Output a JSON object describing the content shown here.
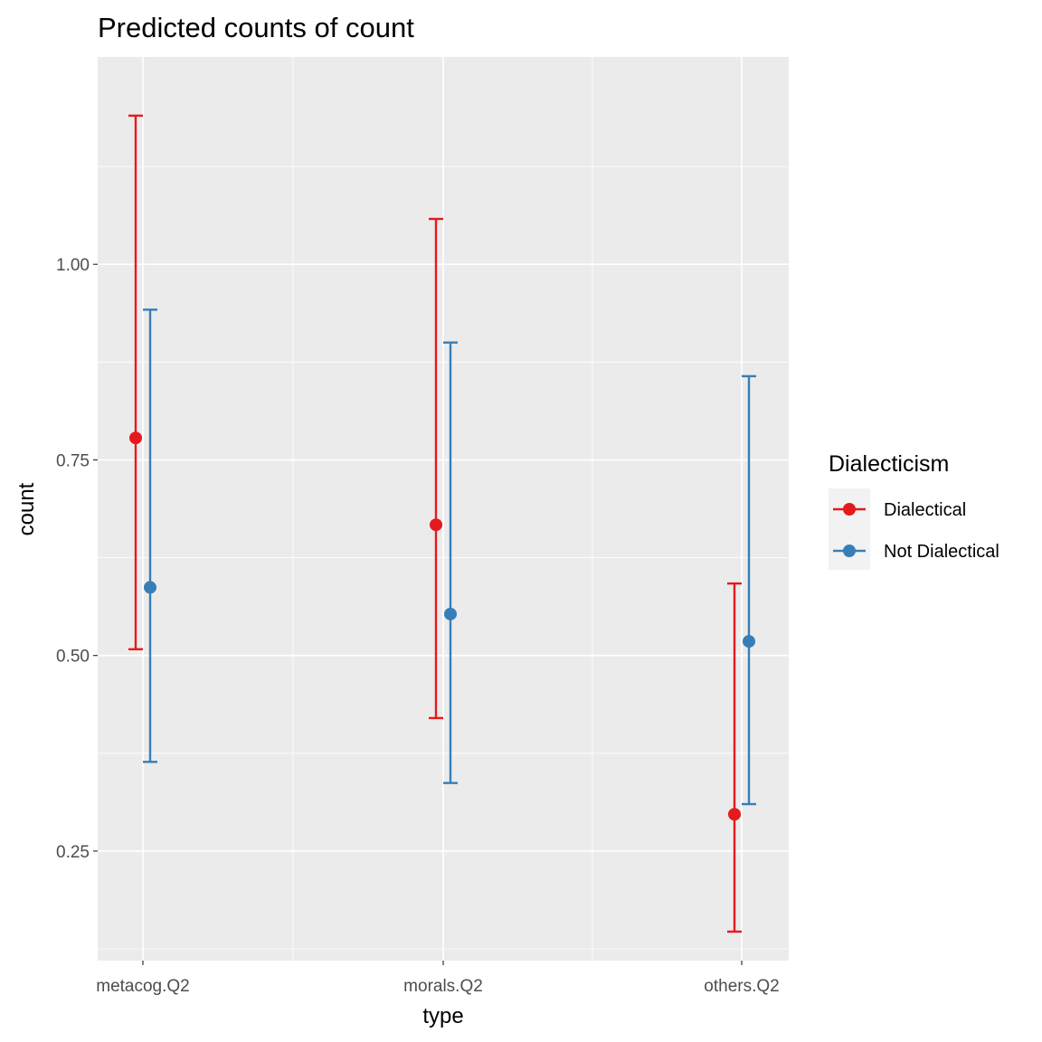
{
  "chart_data": {
    "type": "scatter",
    "title": "Predicted counts of count",
    "xlabel": "type",
    "ylabel": "count",
    "categories": [
      "metacog.Q2",
      "morals.Q2",
      "others.Q2"
    ],
    "ylim": [
      0.11,
      1.265
    ],
    "yticks": [
      0.25,
      0.5,
      0.75,
      1.0
    ],
    "ytick_labels": [
      "0.25",
      "0.50",
      "0.75",
      "1.00"
    ],
    "grid": true,
    "legend": {
      "title": "Dialecticism",
      "position": "right"
    },
    "series": [
      {
        "name": "Dialectical",
        "color": "#e41a1c",
        "values": [
          0.778,
          0.667,
          0.297
        ],
        "lower": [
          0.508,
          0.42,
          0.147
        ],
        "upper": [
          1.19,
          1.058,
          0.592
        ]
      },
      {
        "name": "Not Dialectical",
        "color": "#377eb8",
        "values": [
          0.587,
          0.553,
          0.518
        ],
        "lower": [
          0.364,
          0.337,
          0.31
        ],
        "upper": [
          0.942,
          0.9,
          0.857
        ]
      }
    ]
  }
}
